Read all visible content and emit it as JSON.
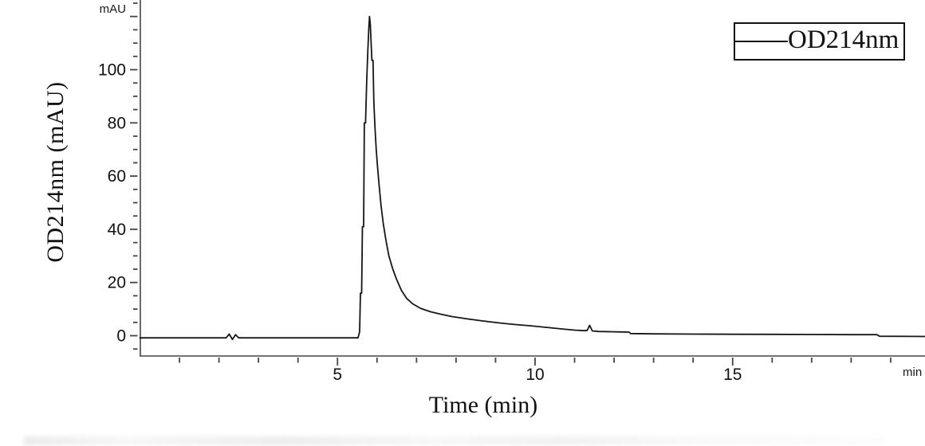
{
  "page": {
    "background": "#ffffff"
  },
  "colors": {
    "axis": "#454545",
    "tick_label": "#111111",
    "trace": "#161616",
    "legend_border": "#111111"
  },
  "legend": {
    "entries": [
      {
        "label": "OD214nm",
        "line_color": "#161616"
      }
    ]
  },
  "chart_data": {
    "type": "line",
    "title": "",
    "xlabel": "Time (min)",
    "ylabel": "OD214nm (mAU)",
    "x_axis_unit_label": "min",
    "y_axis_unit_label": "mAU",
    "xlim": [
      0,
      19.9
    ],
    "ylim": [
      -7.5,
      126
    ],
    "grid": false,
    "legend_position": "top-right",
    "x_major_ticks": [
      5,
      10,
      15
    ],
    "x_major_tick_labels": [
      "5",
      "10",
      "15"
    ],
    "x_minor_tick_step": 1,
    "y_labeled_ticks": [
      0,
      20,
      40,
      60,
      80,
      100
    ],
    "y_labeled_tick_labels": [
      "0",
      "20",
      "40",
      "60",
      "80",
      "100"
    ],
    "y_major_tick_step": 20,
    "y_minor_tick_step": 5,
    "peaks": [
      {
        "time_min": 5.81,
        "height_mAU": 120
      },
      {
        "time_min": 11.38,
        "height_mAU": 3.9
      }
    ],
    "series": [
      {
        "name": "OD214nm",
        "color": "#161616",
        "points": [
          [
            0.0,
            -0.8
          ],
          [
            2.18,
            -0.8
          ],
          [
            2.26,
            0.6
          ],
          [
            2.34,
            -1.4
          ],
          [
            2.42,
            0.4
          ],
          [
            2.5,
            -0.8
          ],
          [
            5.52,
            -0.8
          ],
          [
            5.56,
            1.5
          ],
          [
            5.58,
            16
          ],
          [
            5.61,
            16
          ],
          [
            5.63,
            41
          ],
          [
            5.66,
            41
          ],
          [
            5.68,
            80
          ],
          [
            5.71,
            80
          ],
          [
            5.74,
            96
          ],
          [
            5.77,
            108
          ],
          [
            5.79,
            115
          ],
          [
            5.81,
            120
          ],
          [
            5.83,
            117
          ],
          [
            5.85,
            110
          ],
          [
            5.87,
            103.5
          ],
          [
            5.9,
            103.5
          ],
          [
            5.92,
            88
          ],
          [
            5.95,
            78
          ],
          [
            5.98,
            70
          ],
          [
            6.01,
            64
          ],
          [
            6.05,
            57
          ],
          [
            6.1,
            49
          ],
          [
            6.16,
            42
          ],
          [
            6.23,
            35.5
          ],
          [
            6.3,
            30
          ],
          [
            6.4,
            25
          ],
          [
            6.5,
            21
          ],
          [
            6.62,
            17
          ],
          [
            6.75,
            14
          ],
          [
            6.9,
            12
          ],
          [
            7.1,
            10.3
          ],
          [
            7.35,
            9.0
          ],
          [
            7.6,
            8.1
          ],
          [
            7.9,
            7.2
          ],
          [
            8.3,
            6.3
          ],
          [
            8.7,
            5.5
          ],
          [
            9.1,
            4.8
          ],
          [
            9.5,
            4.2
          ],
          [
            9.9,
            3.7
          ],
          [
            10.3,
            3.1
          ],
          [
            10.7,
            2.5
          ],
          [
            11.0,
            2.1
          ],
          [
            11.25,
            1.9
          ],
          [
            11.32,
            2.0
          ],
          [
            11.38,
            3.9
          ],
          [
            11.45,
            1.8
          ],
          [
            11.6,
            1.6
          ],
          [
            11.9,
            1.5
          ],
          [
            12.2,
            1.4
          ],
          [
            12.38,
            1.35
          ],
          [
            12.42,
            0.8
          ],
          [
            13.0,
            0.7
          ],
          [
            14.0,
            0.6
          ],
          [
            15.0,
            0.55
          ],
          [
            16.0,
            0.5
          ],
          [
            17.0,
            0.45
          ],
          [
            18.0,
            0.4
          ],
          [
            18.65,
            0.4
          ],
          [
            18.72,
            -0.2
          ],
          [
            19.9,
            -0.3
          ]
        ]
      }
    ]
  }
}
